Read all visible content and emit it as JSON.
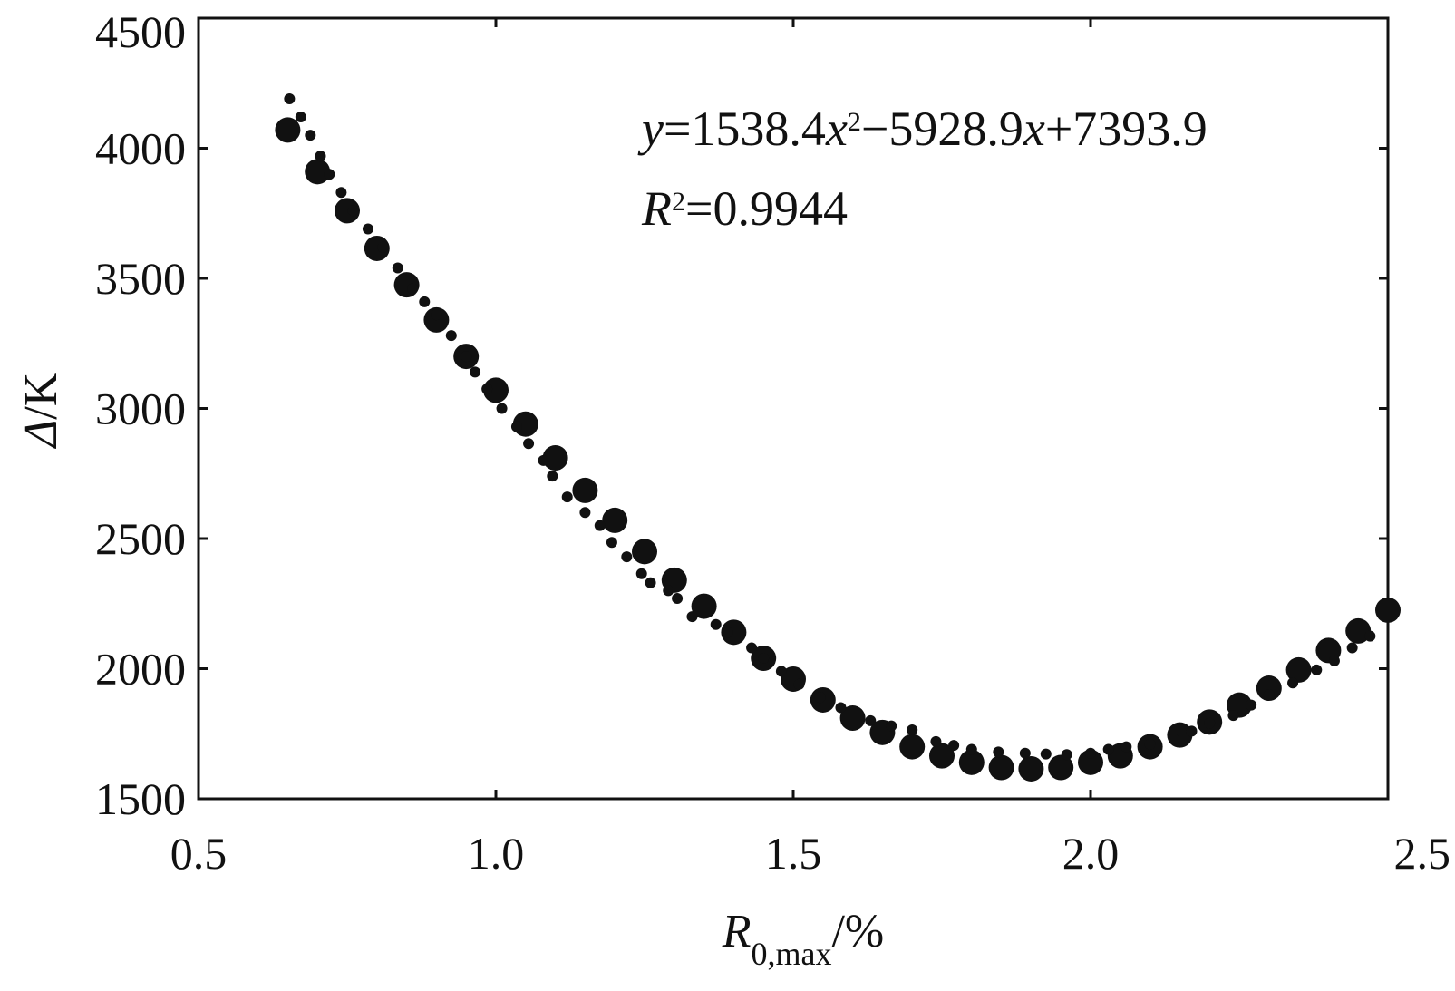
{
  "chart_data": {
    "type": "scatter",
    "title": "",
    "xlabel": {
      "main": "R",
      "sub": "0,max",
      "unit": "/%"
    },
    "ylabel": {
      "main": "Δ",
      "unit": "/K"
    },
    "xlim": [
      0.5,
      2.5
    ],
    "ylim": [
      1500,
      4500
    ],
    "xticks": [
      "0.5",
      "1.0",
      "1.5",
      "2.0",
      "2.5"
    ],
    "yticks": [
      "1500",
      "2000",
      "2500",
      "3000",
      "3500",
      "4000",
      "4500"
    ],
    "grid": false,
    "legend": "none",
    "annotation": {
      "equation": {
        "y": "y",
        "eq1": "=1538.4",
        "x1": "x",
        "sup": "2",
        "eq2": "−5928.9",
        "x2": "x",
        "eq3": "+7393.9"
      },
      "r2": {
        "R": "R",
        "sup": "2",
        "val": "=0.9944"
      }
    },
    "series": [
      {
        "marker": "large-dot",
        "x": [
          0.65,
          0.7,
          0.75,
          0.8,
          0.85,
          0.9,
          0.95,
          1.0,
          1.05,
          1.1,
          1.15,
          1.2,
          1.25,
          1.3,
          1.35,
          1.4,
          1.45,
          1.5,
          1.55,
          1.6,
          1.65,
          1.7,
          1.75,
          1.8,
          1.85,
          1.9,
          1.95,
          2.0,
          2.05,
          2.1,
          2.15,
          2.2,
          2.25,
          2.3,
          2.35,
          2.4,
          2.45,
          2.5
        ],
        "y": [
          4070,
          3910,
          3760,
          3615,
          3475,
          3340,
          3200,
          3070,
          2940,
          2810,
          2685,
          2570,
          2450,
          2340,
          2240,
          2140,
          2040,
          1960,
          1880,
          1810,
          1755,
          1700,
          1665,
          1640,
          1620,
          1615,
          1620,
          1640,
          1665,
          1700,
          1745,
          1795,
          1860,
          1925,
          1995,
          2070,
          2145,
          2225
        ]
      },
      {
        "marker": "small-dot",
        "x": [
          0.653,
          0.672,
          0.688,
          0.705,
          0.72,
          0.74,
          0.76,
          0.785,
          0.81,
          0.835,
          0.86,
          0.88,
          0.9,
          0.925,
          0.95,
          0.965,
          0.985,
          1.01,
          1.035,
          1.055,
          1.08,
          1.095,
          1.12,
          1.15,
          1.175,
          1.195,
          1.22,
          1.245,
          1.26,
          1.29,
          1.305,
          1.33,
          1.37,
          1.39,
          1.43,
          1.45,
          1.48,
          1.51,
          1.545,
          1.58,
          1.63,
          1.665,
          1.7,
          1.74,
          1.77,
          1.8,
          1.845,
          1.89,
          1.925,
          1.96,
          2.0,
          2.03,
          2.06,
          2.1,
          2.14,
          2.17,
          2.2,
          2.24,
          2.27,
          2.3,
          2.34,
          2.38,
          2.41,
          2.44,
          2.47
        ],
        "y": [
          4190,
          4120,
          4050,
          3970,
          3900,
          3830,
          3760,
          3690,
          3620,
          3540,
          3460,
          3410,
          3360,
          3280,
          3200,
          3140,
          3075,
          3000,
          2930,
          2865,
          2800,
          2740,
          2660,
          2600,
          2550,
          2485,
          2430,
          2365,
          2330,
          2300,
          2270,
          2200,
          2170,
          2140,
          2080,
          2040,
          1990,
          1940,
          1890,
          1850,
          1800,
          1780,
          1765,
          1720,
          1705,
          1690,
          1680,
          1675,
          1672,
          1670,
          1675,
          1690,
          1700,
          1710,
          1730,
          1760,
          1790,
          1820,
          1860,
          1900,
          1945,
          1995,
          2030,
          2080,
          2125
        ]
      }
    ]
  }
}
